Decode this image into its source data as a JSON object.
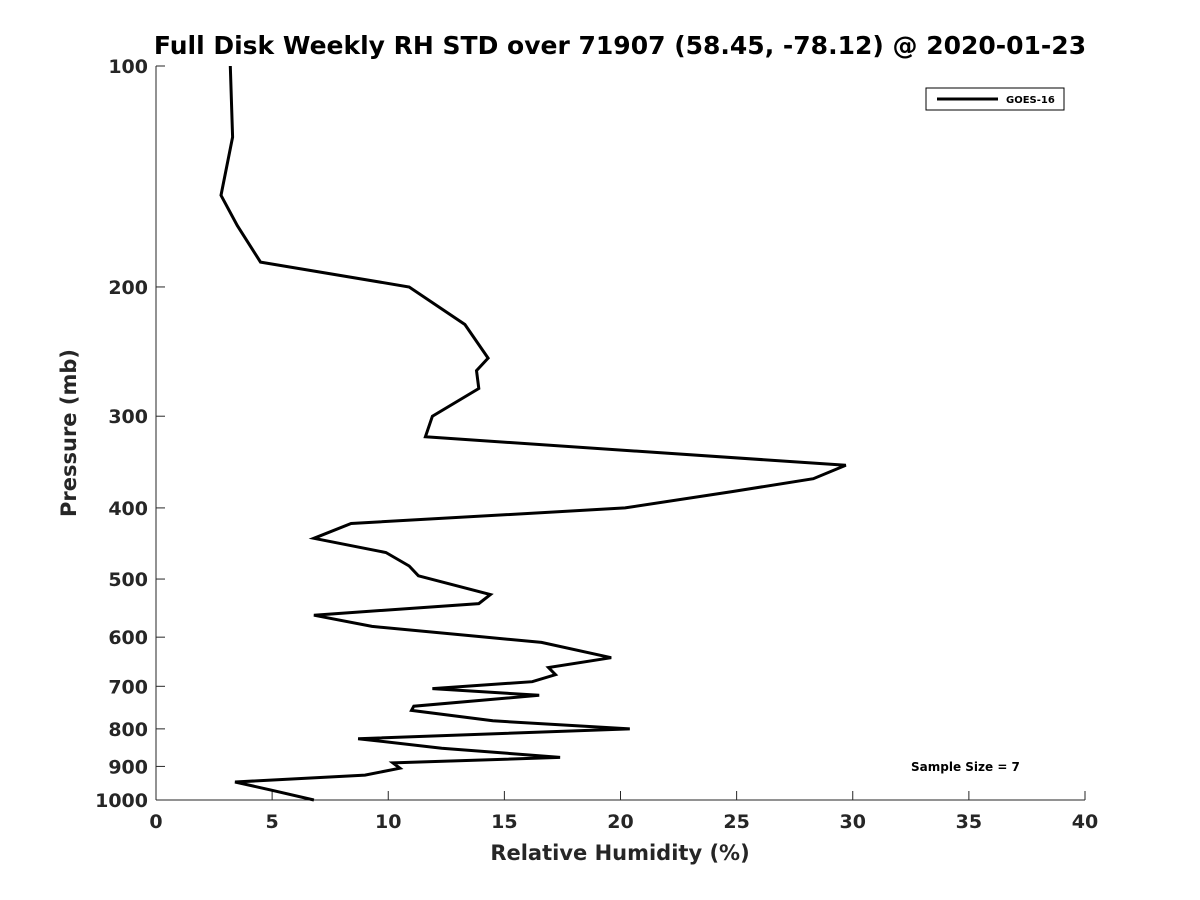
{
  "chart_data": {
    "type": "line",
    "title": "Full Disk Weekly RH STD over 71907 (58.45, -78.12) @ 2020-01-23",
    "xlabel": "Relative Humidity (%)",
    "ylabel": "Pressure (mb)",
    "xlim": [
      0,
      40
    ],
    "ylim": [
      100,
      1000
    ],
    "y_scale": "log",
    "y_reversed": true,
    "x_ticks": [
      0,
      5,
      10,
      15,
      20,
      25,
      30,
      35,
      40
    ],
    "y_ticks": [
      100,
      200,
      300,
      400,
      500,
      600,
      700,
      800,
      900,
      1000
    ],
    "grid": false,
    "legend_position": "top-right",
    "annotation": "Sample Size = 7",
    "series": [
      {
        "name": "GOES-16",
        "color": "#000000",
        "x": [
          3.2,
          3.3,
          2.8,
          3.5,
          4.5,
          10.9,
          13.3,
          14.3,
          13.8,
          13.9,
          11.9,
          11.6,
          29.7,
          28.3,
          24.8,
          20.2,
          8.4,
          6.8,
          9.9,
          10.9,
          11.3,
          14.4,
          13.9,
          6.8,
          9.3,
          16.6,
          19.6,
          16.9,
          17.2,
          16.2,
          11.9,
          16.5,
          11.1,
          11.0,
          14.5,
          20.4,
          8.7,
          12.3,
          17.4,
          10.2,
          10.5,
          9.0,
          3.4,
          5.0,
          6.8
        ],
        "y": [
          100,
          125,
          150,
          165,
          185,
          200,
          225,
          250,
          260,
          275,
          300,
          320,
          350,
          365,
          380,
          400,
          420,
          440,
          460,
          480,
          495,
          525,
          540,
          560,
          580,
          610,
          640,
          660,
          675,
          690,
          705,
          720,
          745,
          755,
          780,
          800,
          825,
          850,
          875,
          890,
          905,
          925,
          945,
          970,
          1000
        ]
      }
    ]
  }
}
